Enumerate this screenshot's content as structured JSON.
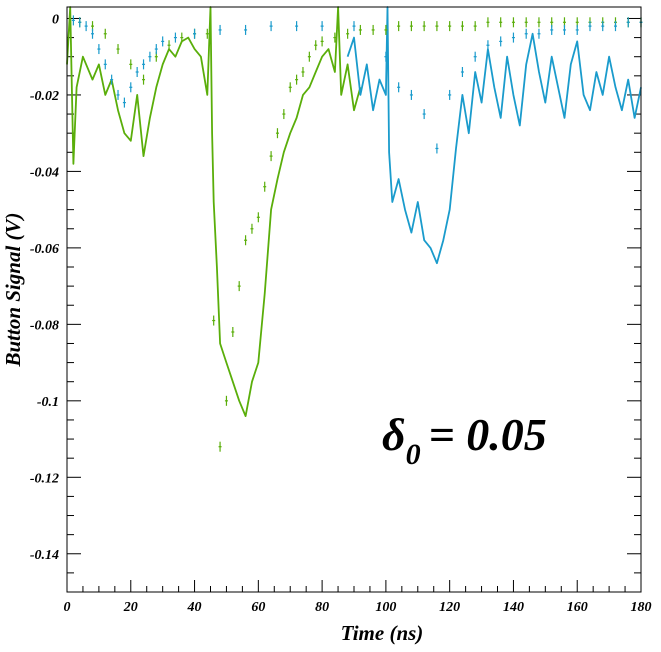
{
  "chart_data": {
    "type": "line",
    "xlabel": "Time (ns)",
    "ylabel": "Button Signal (V)",
    "xlim": [
      0,
      180
    ],
    "ylim": [
      -0.15,
      0.003
    ],
    "xticks": [
      "0",
      "20",
      "40",
      "60",
      "80",
      "100",
      "120",
      "140",
      "160",
      "180"
    ],
    "yticks": [
      "0",
      "-0.02",
      "-0.04",
      "-0.06",
      "-0.08",
      "-0.1",
      "-0.12",
      "-0.14"
    ],
    "annotation": {
      "symbol": "δ",
      "subscript": "0",
      "text": "= 0.05"
    },
    "colors": {
      "green": "#5aae0a",
      "blue": "#1a9bcc"
    },
    "series": [
      {
        "style": "line",
        "color": "green",
        "x": [
          0,
          1,
          2,
          3,
          5,
          8,
          10,
          12,
          14,
          16,
          18,
          20,
          22,
          24,
          26,
          28,
          30,
          32,
          34,
          36,
          38,
          40,
          42,
          44,
          45,
          45.5,
          46,
          47,
          48,
          50,
          52,
          54,
          56,
          58,
          60,
          62,
          64,
          66,
          68,
          70,
          72,
          74,
          76,
          78,
          80,
          82,
          84,
          85,
          86,
          88,
          90,
          92
        ],
        "y": [
          -0.012,
          0.003,
          -0.038,
          -0.018,
          -0.01,
          -0.016,
          -0.012,
          -0.02,
          -0.016,
          -0.024,
          -0.03,
          -0.032,
          -0.02,
          -0.036,
          -0.026,
          -0.018,
          -0.012,
          -0.008,
          -0.01,
          -0.006,
          -0.005,
          -0.008,
          -0.01,
          -0.02,
          0.003,
          -0.03,
          -0.048,
          -0.065,
          -0.085,
          -0.09,
          -0.095,
          -0.1,
          -0.104,
          -0.095,
          -0.09,
          -0.072,
          -0.05,
          -0.042,
          -0.035,
          -0.03,
          -0.026,
          -0.02,
          -0.018,
          -0.014,
          -0.01,
          -0.008,
          -0.014,
          0.003,
          -0.02,
          -0.012,
          -0.024,
          -0.018
        ]
      },
      {
        "style": "line",
        "color": "blue",
        "x": [
          88,
          90,
          92,
          94,
          96,
          98,
          100,
          100.5,
          101,
          102,
          104,
          106,
          108,
          110,
          112,
          114,
          116,
          118,
          120,
          122,
          124,
          126,
          128,
          130,
          132,
          134,
          136,
          138,
          140,
          142,
          144,
          146,
          148,
          150,
          152,
          154,
          156,
          158,
          160,
          162,
          164,
          166,
          168,
          170,
          172,
          174,
          176,
          178,
          180
        ],
        "y": [
          -0.01,
          -0.005,
          -0.02,
          -0.012,
          -0.024,
          -0.016,
          -0.02,
          0.003,
          -0.035,
          -0.048,
          -0.042,
          -0.05,
          -0.056,
          -0.048,
          -0.058,
          -0.06,
          -0.064,
          -0.058,
          -0.05,
          -0.034,
          -0.02,
          -0.03,
          -0.014,
          -0.022,
          -0.008,
          -0.018,
          -0.026,
          -0.01,
          -0.02,
          -0.028,
          -0.012,
          -0.004,
          -0.014,
          -0.022,
          -0.01,
          -0.018,
          -0.026,
          -0.012,
          -0.006,
          -0.02,
          -0.024,
          -0.014,
          -0.02,
          -0.01,
          -0.018,
          -0.024,
          -0.016,
          -0.026,
          -0.018
        ]
      },
      {
        "style": "points",
        "color": "green",
        "x": [
          4,
          8,
          12,
          16,
          20,
          24,
          28,
          32,
          36,
          40,
          44,
          46,
          48,
          50,
          52,
          54,
          56,
          58,
          60,
          62,
          64,
          66,
          68,
          70,
          72,
          74,
          76,
          78,
          80,
          84,
          88,
          92,
          96,
          100,
          104,
          108,
          112,
          116,
          120,
          124,
          128,
          132,
          136,
          140,
          144,
          148,
          152,
          156,
          160,
          164,
          168,
          172,
          176,
          180
        ],
        "y": [
          -0.001,
          -0.002,
          -0.004,
          -0.008,
          -0.012,
          -0.016,
          -0.01,
          -0.007,
          -0.005,
          -0.004,
          -0.004,
          -0.079,
          -0.112,
          -0.1,
          -0.082,
          -0.07,
          -0.058,
          -0.055,
          -0.052,
          -0.044,
          -0.036,
          -0.03,
          -0.025,
          -0.018,
          -0.016,
          -0.014,
          -0.01,
          -0.007,
          -0.006,
          -0.005,
          -0.004,
          -0.003,
          -0.003,
          -0.003,
          -0.002,
          -0.002,
          -0.002,
          -0.002,
          -0.002,
          -0.002,
          -0.002,
          -0.001,
          -0.001,
          -0.001,
          -0.001,
          -0.001,
          -0.001,
          -0.001,
          -0.001,
          -0.001,
          -0.001,
          -0.001,
          -0.001,
          -0.001
        ]
      },
      {
        "style": "points",
        "color": "blue",
        "x": [
          2,
          4,
          6,
          8,
          10,
          12,
          14,
          16,
          18,
          20,
          22,
          24,
          26,
          28,
          30,
          34,
          40,
          48,
          56,
          64,
          72,
          80,
          90,
          100,
          104,
          108,
          112,
          116,
          120,
          124,
          128,
          132,
          136,
          140,
          144,
          148,
          152,
          156,
          160,
          164,
          168,
          172,
          176,
          180
        ],
        "y": [
          -0.0005,
          -0.001,
          -0.002,
          -0.004,
          -0.008,
          -0.012,
          -0.016,
          -0.02,
          -0.022,
          -0.018,
          -0.014,
          -0.012,
          -0.01,
          -0.008,
          -0.006,
          -0.005,
          -0.004,
          -0.003,
          -0.003,
          -0.002,
          -0.002,
          -0.002,
          -0.002,
          -0.01,
          -0.018,
          -0.02,
          -0.025,
          -0.034,
          -0.02,
          -0.014,
          -0.01,
          -0.007,
          -0.006,
          -0.005,
          -0.004,
          -0.004,
          -0.003,
          -0.003,
          -0.003,
          -0.002,
          -0.002,
          -0.002,
          -0.001,
          -0.001
        ]
      }
    ]
  }
}
